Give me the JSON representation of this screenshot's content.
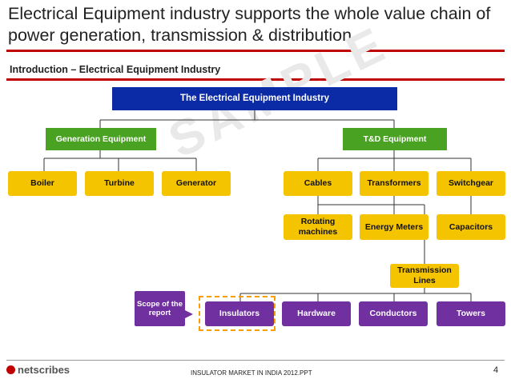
{
  "header": {
    "title": "Electrical Equipment industry supports the whole value chain of power generation, transmission & distribution",
    "subtitle": "Introduction – Electrical Equipment Industry"
  },
  "diagram": {
    "root": "The Electrical Equipment Industry",
    "generation": {
      "label": "Generation Equipment",
      "children": [
        "Boiler",
        "Turbine",
        "Generator"
      ]
    },
    "td": {
      "label": "T&D Equipment",
      "row1": [
        "Cables",
        "Transformers",
        "Switchgear"
      ],
      "row2": [
        "Rotating machines",
        "Energy Meters",
        "Capacitors"
      ],
      "transmission": "Transmission Lines",
      "row3": [
        "Insulators",
        "Hardware",
        "Conductors",
        "Towers"
      ]
    },
    "scope_callout": "Scope of the report"
  },
  "watermark": "SAMPLE",
  "footer": {
    "logo_text": "netscribes",
    "center_text": "INSULATOR MARKET IN INDIA 2012.PPT",
    "page_number": "4"
  },
  "colors": {
    "root_box": "#0b2aa6",
    "level1_box": "#4aa222",
    "leaf_box": "#f5c400",
    "scope_box": "#7030a0",
    "accent_rule": "#c00000",
    "scope_outline": "#f5a000"
  }
}
